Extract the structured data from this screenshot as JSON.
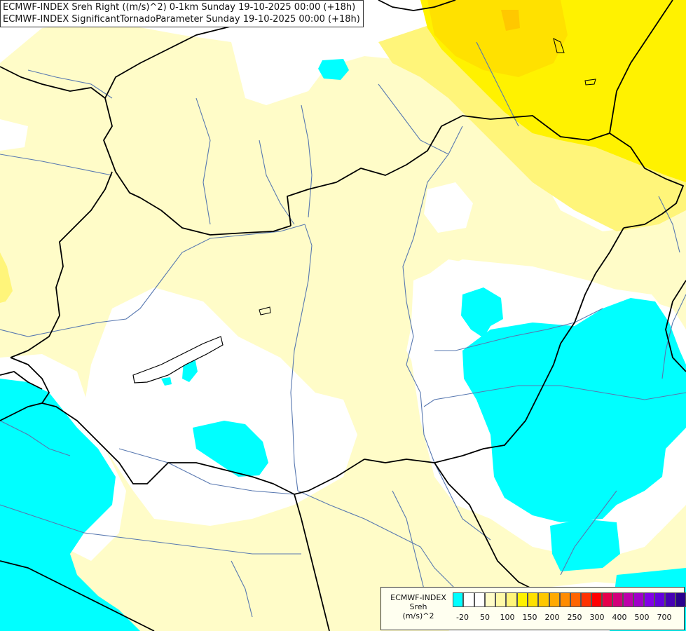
{
  "title": {
    "line1": "ECMWF-INDEX Sreh Right ((m/s)^2) 0-1km Sunday 19-10-2025 00:00 (+18h)",
    "line2": "ECMWF-INDEX SignificantTornadoParameter Sunday 19-10-2025 00:00 (+18h)"
  },
  "legend": {
    "line1": "ECMWF-INDEX",
    "line2": "Sreh",
    "line3": "(m/s)^2",
    "colors": [
      "#00ffff",
      "#ffffff",
      "#ffffff",
      "#fffcc8",
      "#fffaa8",
      "#fff57a",
      "#fff200",
      "#ffe100",
      "#ffc800",
      "#ffaa00",
      "#ff8c00",
      "#ff6400",
      "#ff3200",
      "#ff0000",
      "#e6004b",
      "#d2007a",
      "#be00aa",
      "#a000c8",
      "#8200e6",
      "#6400dc",
      "#4600b4",
      "#28008c",
      "#000070"
    ],
    "ticks": [
      "-20",
      "50",
      "100",
      "150",
      "200",
      "250",
      "300",
      "400",
      "500",
      "700"
    ]
  },
  "colors": {
    "cyan": "#00ffff",
    "pale_yellow": "#fffcc8",
    "light_yellow": "#fff57a",
    "yellow": "#fff200",
    "gold": "#ffe100",
    "orange": "#ffc800",
    "border": "#000000",
    "river": "#5878b0"
  }
}
